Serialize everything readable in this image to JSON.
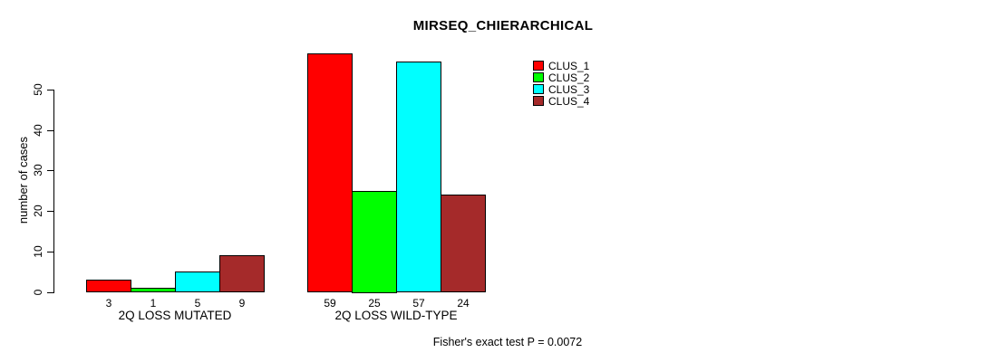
{
  "title": "MIRSEQ_CHIERARCHICAL",
  "footnote": "Fisher's exact test P = 0.0072",
  "chart_data": {
    "type": "bar",
    "title": "MIRSEQ_CHIERARCHICAL",
    "xlabel": "",
    "ylabel": "number of cases",
    "ylim": [
      0,
      50
    ],
    "yticks": [
      0,
      10,
      20,
      30,
      40,
      50
    ],
    "grid": false,
    "legend_position": "top-right",
    "categories": [
      "2Q LOSS MUTATED",
      "2Q LOSS WILD-TYPE"
    ],
    "series": [
      {
        "name": "CLUS_1",
        "color": "#ff0000",
        "values": [
          3,
          59
        ]
      },
      {
        "name": "CLUS_2",
        "color": "#00ff00",
        "values": [
          1,
          25
        ]
      },
      {
        "name": "CLUS_3",
        "color": "#00ffff",
        "values": [
          5,
          57
        ]
      },
      {
        "name": "CLUS_4",
        "color": "#a52a2a",
        "values": [
          9,
          24
        ]
      }
    ],
    "bar_value_labels": [
      [
        3,
        1,
        5,
        9
      ],
      [
        59,
        25,
        57,
        24
      ]
    ],
    "annotation": "Fisher's exact test P = 0.0072"
  }
}
